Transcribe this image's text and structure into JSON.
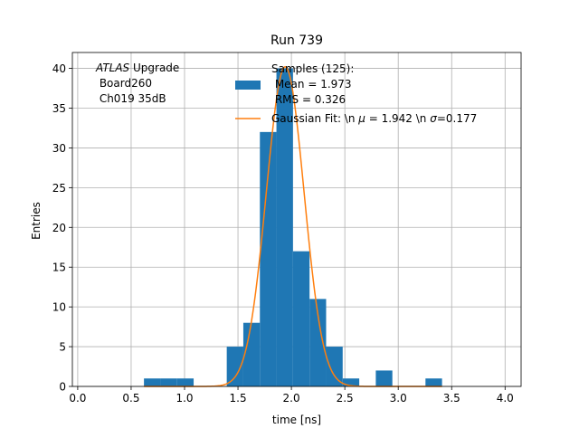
{
  "chart_data": {
    "type": "bar",
    "title": "Run 739",
    "xlabel": "time [ns]",
    "ylabel": "Entries",
    "xlim": [
      -0.05,
      4.15
    ],
    "ylim": [
      0,
      42
    ],
    "xticks": [
      0.0,
      0.5,
      1.0,
      1.5,
      2.0,
      2.5,
      3.0,
      3.5,
      4.0
    ],
    "xtick_labels": [
      "0.0",
      "0.5",
      "1.0",
      "1.5",
      "2.0",
      "2.5",
      "3.0",
      "3.5",
      "4.0"
    ],
    "yticks": [
      0,
      5,
      10,
      15,
      20,
      25,
      30,
      35,
      40
    ],
    "ytick_labels": [
      "0",
      "5",
      "10",
      "15",
      "20",
      "25",
      "30",
      "35",
      "40"
    ],
    "grid": true,
    "bin_width": 0.155,
    "bins": [
      {
        "x0": 0.62,
        "x1": 0.775,
        "count": 1
      },
      {
        "x0": 0.775,
        "x1": 0.93,
        "count": 1
      },
      {
        "x0": 0.93,
        "x1": 1.085,
        "count": 1
      },
      {
        "x0": 1.395,
        "x1": 1.55,
        "count": 5
      },
      {
        "x0": 1.55,
        "x1": 1.705,
        "count": 8
      },
      {
        "x0": 1.705,
        "x1": 1.86,
        "count": 32
      },
      {
        "x0": 1.86,
        "x1": 2.015,
        "count": 40
      },
      {
        "x0": 2.015,
        "x1": 2.17,
        "count": 17
      },
      {
        "x0": 2.17,
        "x1": 2.325,
        "count": 11
      },
      {
        "x0": 2.325,
        "x1": 2.48,
        "count": 5
      },
      {
        "x0": 2.48,
        "x1": 2.635,
        "count": 1
      },
      {
        "x0": 2.79,
        "x1": 2.945,
        "count": 2
      },
      {
        "x0": 3.255,
        "x1": 3.41,
        "count": 1
      }
    ],
    "histogram_color": "#1f77b4",
    "fit": {
      "type": "gaussian",
      "mu": 1.942,
      "sigma": 0.177,
      "amplitude": 40.2,
      "x_range": [
        0.62,
        3.41
      ],
      "color": "#ff7f0e"
    },
    "annotation": {
      "lines": [
        "ATLAS Upgrade",
        " Board260",
        " Ch019 35dB"
      ],
      "italic_word": "ATLAS",
      "rest_of_first_line": " Upgrade"
    },
    "legend": {
      "placement": "top-right",
      "entries": [
        {
          "kind": "patch",
          "lines": [
            "Samples (125):",
            " Mean = 1.973",
            " RMS = 0.326"
          ]
        },
        {
          "kind": "line",
          "text_before_mu": "Gaussian Fit: \\n ",
          "mu_symbol": "μ",
          "text_mu_value": " = 1.942 \\n ",
          "sigma_symbol": "σ",
          "text_sigma_value": "=0.177"
        }
      ]
    }
  }
}
